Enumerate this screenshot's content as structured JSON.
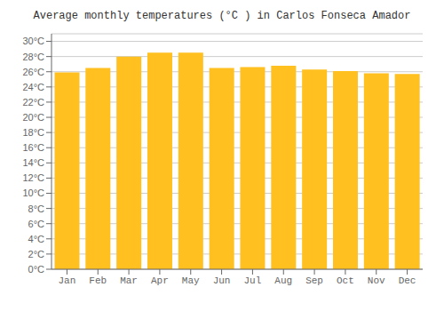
{
  "chart_data": {
    "type": "bar",
    "title": "Average monthly temperatures (°C ) in Carlos Fonseca Amador",
    "categories": [
      "Jan",
      "Feb",
      "Mar",
      "Apr",
      "May",
      "Jun",
      "Jul",
      "Aug",
      "Sep",
      "Oct",
      "Nov",
      "Dec"
    ],
    "values": [
      25.9,
      26.5,
      28.0,
      28.5,
      28.5,
      26.5,
      26.6,
      26.8,
      26.3,
      26.1,
      25.8,
      25.7
    ],
    "color": "#FFC020",
    "ylim": [
      0,
      31
    ],
    "yticks": [
      {
        "value": 0,
        "label": "0°C"
      },
      {
        "value": 2,
        "label": "2°C"
      },
      {
        "value": 4,
        "label": "4°C"
      },
      {
        "value": 6,
        "label": "6°C"
      },
      {
        "value": 8,
        "label": "8°C"
      },
      {
        "value": 10,
        "label": "10°C"
      },
      {
        "value": 12,
        "label": "12°C"
      },
      {
        "value": 14,
        "label": "14°C"
      },
      {
        "value": 16,
        "label": "16°C"
      },
      {
        "value": 18,
        "label": "18°C"
      },
      {
        "value": 20,
        "label": "20°C"
      },
      {
        "value": 22,
        "label": "22°C"
      },
      {
        "value": 24,
        "label": "24°C"
      },
      {
        "value": 26,
        "label": "26°C"
      },
      {
        "value": 28,
        "label": "28°C"
      },
      {
        "value": 30,
        "label": "30°C"
      }
    ],
    "grid": true
  }
}
